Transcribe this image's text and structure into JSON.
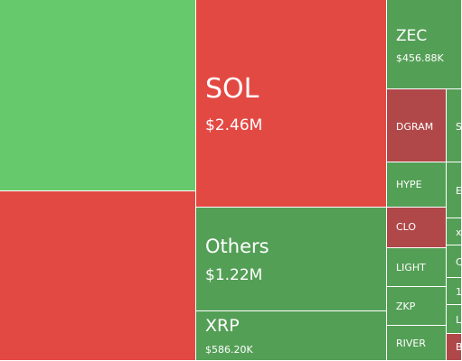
{
  "treemap": {
    "colors": {
      "gain": "#549f56",
      "strong_gain": "#66c96c",
      "loss": "#e34943",
      "mild_loss": "#b04849"
    },
    "tiles": {
      "sol": {
        "symbol": "SOL",
        "value": "$2.46M"
      },
      "others": {
        "symbol": "Others",
        "value": "$1.22M"
      },
      "xrp": {
        "symbol": "XRP",
        "value": "$586.20K"
      },
      "zec": {
        "symbol": "ZEC",
        "value": "$456.88K"
      },
      "dgram": {
        "symbol": "DGRAM"
      },
      "hype": {
        "symbol": "HYPE"
      },
      "clo": {
        "symbol": "CLO"
      },
      "light": {
        "symbol": "LIGHT"
      },
      "zkp": {
        "symbol": "ZKP"
      },
      "river": {
        "symbol": "RIVER"
      },
      "s_partial": {
        "symbol": "S"
      },
      "e_partial": {
        "symbol": "E"
      },
      "x_partial": {
        "symbol": "x"
      },
      "c_partial": {
        "symbol": "C"
      },
      "one_partial": {
        "symbol": "1"
      },
      "l_partial": {
        "symbol": "L"
      },
      "b_partial": {
        "symbol": "B"
      }
    }
  }
}
